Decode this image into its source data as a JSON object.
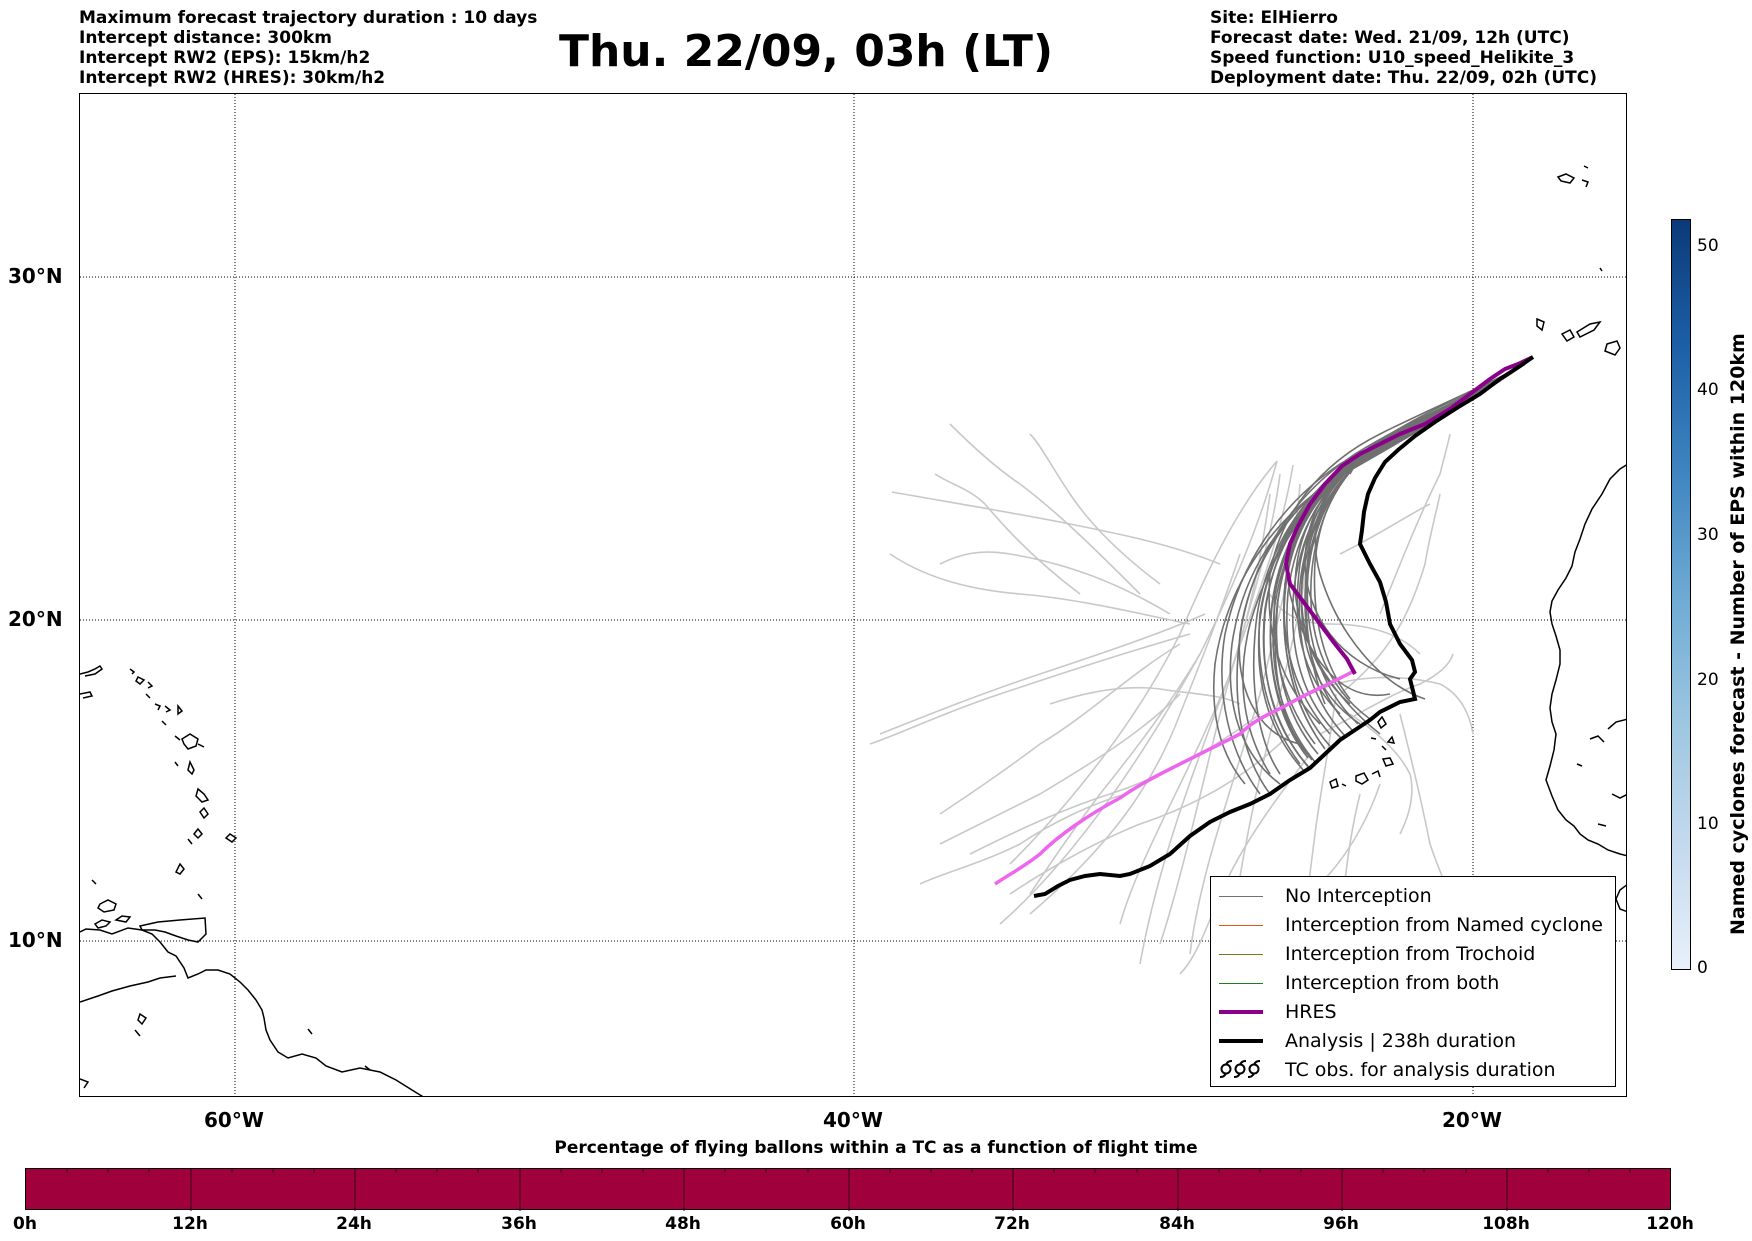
{
  "header": {
    "left_lines": [
      "Maximum forecast trajectory duration : 10 days",
      "Intercept distance: 300km",
      "Intercept RW2 (EPS):  15km/h2",
      "Intercept RW2 (HRES): 30km/h2"
    ],
    "right_lines": [
      "Site: ElHierro",
      "Forecast date: Wed. 21/09, 12h (UTC)",
      "Speed function: U10_speed_Helikite_3",
      "Deployment date: Thu. 22/09, 02h (UTC)"
    ],
    "title": "Thu. 22/09, 03h (LT)"
  },
  "map": {
    "lat_labels": [
      "30°N",
      "20°N",
      "10°N"
    ],
    "lon_labels": [
      "60°W",
      "40°W",
      "20°W"
    ],
    "colors": {
      "no_interception": "#707070",
      "no_interception_light": "#c8c8c8",
      "named_cyclone": "#e8501c",
      "trochoid": "#7a7a1a",
      "both": "#1d7d1d",
      "hres": "#8b008b",
      "analysis": "#000000",
      "pink_track": "#ee66ee"
    }
  },
  "legend": {
    "items": [
      {
        "label": "No Interception",
        "color": "#707070"
      },
      {
        "label": "Interception from Named cyclone",
        "color": "#e8501c"
      },
      {
        "label": "Interception from Trochoid",
        "color": "#7a7a1a"
      },
      {
        "label": "Interception from both",
        "color": "#1d7d1d"
      },
      {
        "label": "HRES",
        "color": "#8b008b"
      },
      {
        "label": "Analysis | 238h duration",
        "color": "#000000"
      },
      {
        "label": "TC obs. for analysis duration",
        "icon": "cyclone-symbols-icon"
      }
    ]
  },
  "vertical_colorbar": {
    "label": "Named cyclones forecast - Number of EPS within 120km",
    "ticks": [
      "0",
      "10",
      "20",
      "30",
      "40",
      "50"
    ],
    "max": 52
  },
  "horizontal_colorbar": {
    "title": "Percentage of flying ballons within a TC as a function of flight time",
    "color": "#a0003b",
    "ticks": [
      "0h",
      "12h",
      "24h",
      "36h",
      "48h",
      "60h",
      "72h",
      "84h",
      "96h",
      "108h",
      "120h"
    ]
  }
}
